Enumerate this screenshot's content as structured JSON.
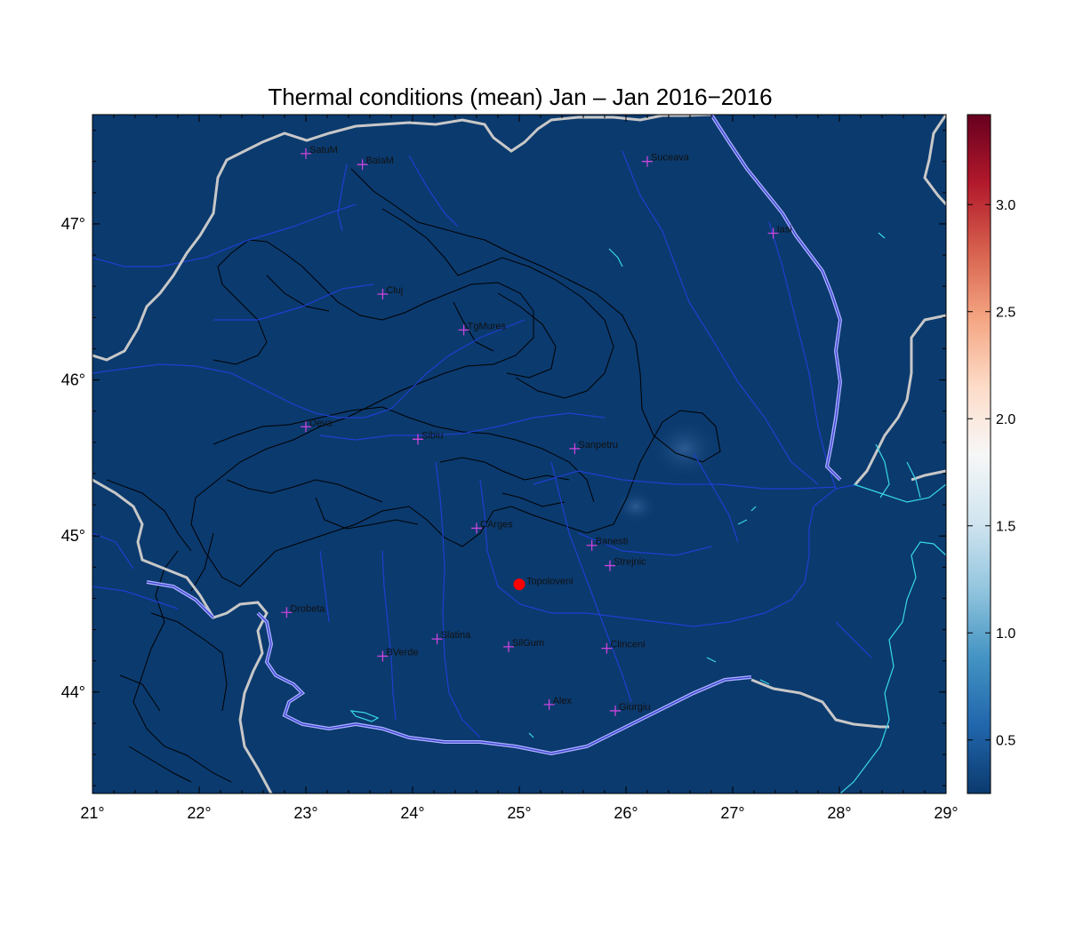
{
  "title": "Thermal conditions (mean) Jan – Jan  2016−2016",
  "map": {
    "background_color": "#0b3a6e",
    "lon_range": [
      21,
      29
    ],
    "lat_range": [
      43.35,
      47.7
    ],
    "x_ticks": [
      "21°",
      "22°",
      "23°",
      "24°",
      "25°",
      "26°",
      "27°",
      "28°",
      "29°"
    ],
    "y_ticks": [
      "44°",
      "45°",
      "46°",
      "47°"
    ],
    "x_tick_values": [
      21,
      22,
      23,
      24,
      25,
      26,
      27,
      28,
      29
    ],
    "y_tick_values": [
      44,
      45,
      46,
      47
    ]
  },
  "colorbar": {
    "min": 0.25,
    "max": 3.42,
    "ticks": [
      "0.5",
      "1.0",
      "1.5",
      "2.0",
      "2.5",
      "3.0"
    ],
    "tick_values": [
      0.5,
      1.0,
      1.5,
      2.0,
      2.5,
      3.0
    ],
    "colors": [
      "#0b3a6e",
      "#2166ac",
      "#4393c3",
      "#92c5de",
      "#d1e5f0",
      "#f7f7f7",
      "#fddbc7",
      "#f4a582",
      "#d6604d",
      "#b2182b",
      "#67001f"
    ]
  },
  "stations": [
    {
      "name": "SatuM",
      "lon": 23.0,
      "lat": 47.45
    },
    {
      "name": "BaiaM",
      "lon": 23.53,
      "lat": 47.38
    },
    {
      "name": "Suceava",
      "lon": 26.2,
      "lat": 47.4
    },
    {
      "name": "Iasi",
      "lon": 27.38,
      "lat": 46.94
    },
    {
      "name": "Cluj",
      "lon": 23.72,
      "lat": 46.55
    },
    {
      "name": "TgMures",
      "lon": 24.48,
      "lat": 46.32
    },
    {
      "name": "Deva",
      "lon": 23.0,
      "lat": 45.7
    },
    {
      "name": "Sibiu",
      "lon": 24.05,
      "lat": 45.62
    },
    {
      "name": "Sanpetru",
      "lon": 25.52,
      "lat": 45.56
    },
    {
      "name": "CArges",
      "lon": 24.6,
      "lat": 45.05
    },
    {
      "name": "Banesti",
      "lon": 25.68,
      "lat": 44.94
    },
    {
      "name": "Strejnic",
      "lon": 25.85,
      "lat": 44.81
    },
    {
      "name": "Drobeta",
      "lon": 22.82,
      "lat": 44.51
    },
    {
      "name": "Slatina",
      "lon": 24.23,
      "lat": 44.34
    },
    {
      "name": "SilGum",
      "lon": 24.9,
      "lat": 44.29
    },
    {
      "name": "Clinceni",
      "lon": 25.82,
      "lat": 44.28
    },
    {
      "name": "BVerde",
      "lon": 23.72,
      "lat": 44.23
    },
    {
      "name": "Alex",
      "lon": 25.28,
      "lat": 43.92
    },
    {
      "name": "Giurgiu",
      "lon": 25.9,
      "lat": 43.88
    }
  ],
  "highlight_station": {
    "name": "Topoloveni",
    "lon": 25.0,
    "lat": 44.69,
    "color": "#ff0000"
  },
  "colors": {
    "borders": "#c8c8c8",
    "rivers": "#1f3fd0",
    "contours": "#000000",
    "lakes_coast": "#38d8e8",
    "danube": "#aab0ff",
    "station_marker": "#cc44dd"
  }
}
